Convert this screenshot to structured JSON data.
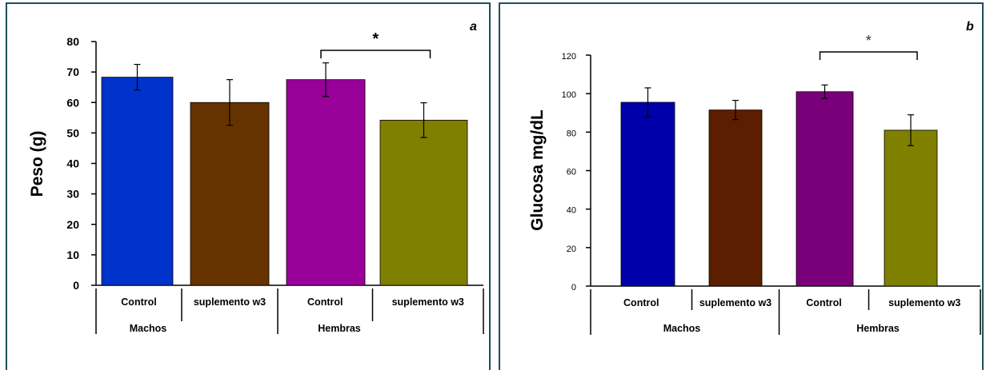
{
  "chart_data": [
    {
      "type": "bar",
      "panel_label": "a",
      "ylabel": "Peso (g)",
      "ylim": [
        0,
        80
      ],
      "yticks": [
        0,
        10,
        20,
        30,
        40,
        50,
        60,
        70,
        80
      ],
      "categories": [
        "Control",
        "suplemento w3",
        "Control",
        "suplemento w3"
      ],
      "groups": [
        "Machos",
        "Hembras"
      ],
      "values": [
        68.3,
        60.0,
        67.5,
        54.2
      ],
      "errors": [
        4.2,
        7.5,
        5.5,
        5.7
      ],
      "colors": [
        "#0033cc",
        "#663300",
        "#990099",
        "#808000"
      ],
      "significance_label": "*",
      "significance_between": [
        2,
        3
      ]
    },
    {
      "type": "bar",
      "panel_label": "b",
      "ylabel": "Glucosa mg/dL",
      "ylim": [
        0,
        120
      ],
      "yticks": [
        0,
        20,
        40,
        60,
        80,
        100,
        120
      ],
      "categories": [
        "Control",
        "suplemento w3",
        "Control",
        "suplemento w3"
      ],
      "groups": [
        "Machos",
        "Hembras"
      ],
      "values": [
        95.5,
        91.5,
        101.0,
        81.0
      ],
      "errors": [
        7.5,
        5.0,
        3.5,
        8.0
      ],
      "colors": [
        "#0000aa",
        "#5c1e00",
        "#7a007a",
        "#7f7f00"
      ],
      "significance_label": "*",
      "significance_between": [
        2,
        3
      ]
    }
  ]
}
